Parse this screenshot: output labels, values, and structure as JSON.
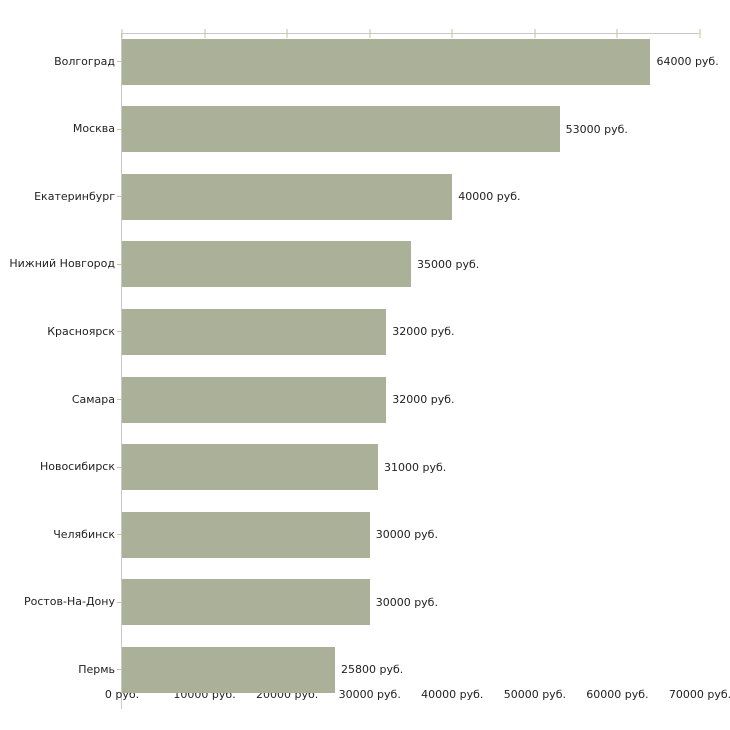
{
  "chart_data": {
    "type": "bar",
    "orientation": "horizontal",
    "categories": [
      "Волгоград",
      "Москва",
      "Екатеринбург",
      "Нижний Новгород",
      "Красноярск",
      "Самара",
      "Новосибирск",
      "Челябинск",
      "Ростов-На-Дону",
      "Пермь"
    ],
    "values": [
      64000,
      53000,
      40000,
      35000,
      32000,
      32000,
      31000,
      30000,
      30000,
      25800
    ],
    "value_labels": [
      "64000 руб.",
      "53000 руб.",
      "40000 руб.",
      "35000 руб.",
      "32000 руб.",
      "32000 руб.",
      "31000 руб.",
      "30000 руб.",
      "30000 руб.",
      "25800 руб."
    ],
    "x_tick_labels": [
      "0 руб.",
      "10000 руб.",
      "20000 руб.",
      "30000 руб.",
      "40000 руб.",
      "50000 руб.",
      "60000 руб.",
      "70000 руб."
    ],
    "xlim": [
      0,
      70000
    ],
    "unit": "руб.",
    "title": "",
    "xlabel": "",
    "ylabel": "",
    "grid": false,
    "legend": false,
    "colors": {
      "bar": "#abb198",
      "axis": "#c9c9c9",
      "tick": "#c6c69a",
      "text": "#222222",
      "background": "#ffffff"
    }
  }
}
